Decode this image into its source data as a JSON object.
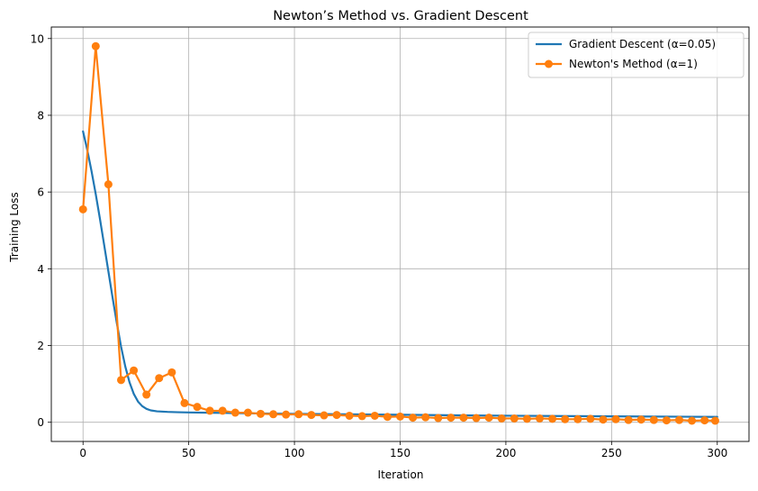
{
  "chart_data": {
    "type": "line",
    "title": "Newton’s Method vs. Gradient Descent",
    "xlabel": "Iteration",
    "ylabel": "Training Loss",
    "xlim": [
      -15,
      315
    ],
    "ylim": [
      -0.5,
      10.3
    ],
    "xticks": [
      0,
      50,
      100,
      150,
      200,
      250,
      300
    ],
    "yticks": [
      0,
      2,
      4,
      6,
      8,
      10
    ],
    "grid": true,
    "legend_position": "upper right",
    "series": [
      {
        "name": "Gradient Descent (α=0.05)",
        "color": "#1f77b4",
        "marker": "none",
        "x": [
          0,
          2,
          4,
          6,
          8,
          10,
          12,
          14,
          16,
          18,
          20,
          22,
          24,
          26,
          28,
          30,
          32,
          35,
          40,
          45,
          50,
          60,
          70,
          80,
          100,
          150,
          200,
          250,
          300
        ],
        "values": [
          7.58,
          7.1,
          6.55,
          5.95,
          5.3,
          4.62,
          3.93,
          3.24,
          2.58,
          1.97,
          1.45,
          1.04,
          0.74,
          0.54,
          0.42,
          0.35,
          0.31,
          0.285,
          0.27,
          0.262,
          0.256,
          0.248,
          0.24,
          0.232,
          0.22,
          0.195,
          0.17,
          0.155,
          0.14
        ]
      },
      {
        "name": "Newton's Method (α=1)",
        "color": "#ff7f0e",
        "marker": "circle",
        "x": [
          0,
          6,
          12,
          18,
          24,
          30,
          36,
          42,
          48,
          54,
          60,
          66,
          72,
          78,
          84,
          90,
          96,
          102,
          108,
          114,
          120,
          126,
          132,
          138,
          144,
          150,
          156,
          162,
          168,
          174,
          180,
          186,
          192,
          198,
          204,
          210,
          216,
          222,
          228,
          234,
          240,
          246,
          252,
          258,
          264,
          270,
          276,
          282,
          288,
          294,
          299
        ],
        "values": [
          5.55,
          9.8,
          6.2,
          1.1,
          1.35,
          0.72,
          1.15,
          1.3,
          0.5,
          0.4,
          0.3,
          0.3,
          0.25,
          0.25,
          0.22,
          0.21,
          0.2,
          0.21,
          0.19,
          0.18,
          0.19,
          0.17,
          0.16,
          0.17,
          0.14,
          0.15,
          0.12,
          0.13,
          0.11,
          0.12,
          0.12,
          0.11,
          0.12,
          0.1,
          0.1,
          0.09,
          0.1,
          0.09,
          0.08,
          0.08,
          0.09,
          0.07,
          0.08,
          0.06,
          0.07,
          0.06,
          0.05,
          0.06,
          0.04,
          0.05,
          0.04
        ]
      }
    ]
  }
}
